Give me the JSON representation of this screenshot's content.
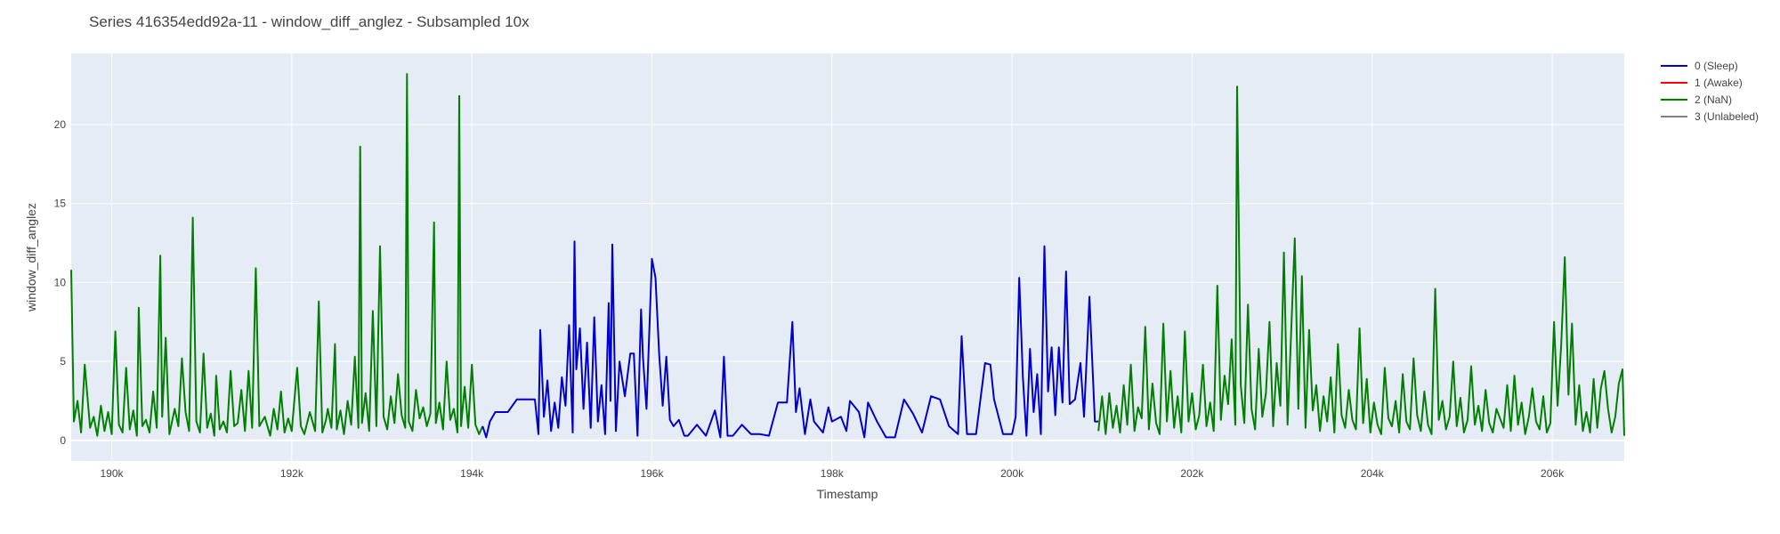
{
  "chart_data": {
    "type": "line",
    "title": "Series 416354edd92a-11 - window_diff_anglez - Subsampled 10x",
    "xlabel": "Timestamp",
    "ylabel": "window_diff_anglez",
    "xlim": [
      189550,
      206800
    ],
    "ylim": [
      -1.3,
      24.5
    ],
    "x_ticks": [
      190000,
      192000,
      194000,
      196000,
      198000,
      200000,
      202000,
      204000,
      206000
    ],
    "x_tick_labels": [
      "190k",
      "192k",
      "194k",
      "196k",
      "198k",
      "200k",
      "202k",
      "204k",
      "206k"
    ],
    "y_ticks": [
      0,
      5,
      10,
      15,
      20
    ],
    "y_tick_labels": [
      "0",
      "5",
      "10",
      "15",
      "20"
    ],
    "grid": true,
    "legend_position": "top-right",
    "colors": {
      "plot_bg": "#e5ecf6",
      "grid": "#ffffff",
      "sleep": "#0000cc",
      "awake": "#ff0000",
      "nan": "#008000",
      "unlabeled": "#808080"
    },
    "legend": [
      {
        "name": "0 (Sleep)",
        "color": "#0000cc"
      },
      {
        "name": "1 (Awake)",
        "color": "#ff0000"
      },
      {
        "name": "2 (NaN)",
        "color": "#008000"
      },
      {
        "name": "3 (Unlabeled)",
        "color": "#808080"
      }
    ],
    "series": [
      {
        "name": "2 (NaN)",
        "color": "#008000",
        "x": [
          189550,
          189580,
          189620,
          189660,
          189700,
          189760,
          189800,
          189840,
          189880,
          189920,
          189960,
          190000,
          190040,
          190080,
          190120,
          190160,
          190200,
          190240,
          190280,
          190300,
          190340,
          190380,
          190420,
          190460,
          190500,
          190540,
          190560,
          190600,
          190640,
          190700,
          190740,
          190780,
          190820,
          190860,
          190900,
          190940,
          190980,
          191020,
          191060,
          191100,
          191140,
          191160,
          191200,
          191240,
          191280,
          191320,
          191360,
          191400,
          191440,
          191480,
          191520,
          191560,
          191600,
          191640,
          191700,
          191760,
          191800,
          191840,
          191880,
          191920,
          191960,
          192000,
          192060,
          192100,
          192140,
          192200,
          192260,
          192300,
          192340,
          192380,
          192400,
          192440,
          192480,
          192500,
          192540,
          192580,
          192620,
          192660,
          192700,
          192740,
          192760,
          192780,
          192820,
          192860,
          192900,
          192940,
          192980,
          193020,
          193060,
          193100,
          193140,
          193180,
          193220,
          193260,
          193280,
          193300,
          193340,
          193380,
          193420,
          193460,
          193500,
          193540,
          193580,
          193600,
          193640,
          193680,
          193720,
          193760,
          193800,
          193840,
          193860,
          193880,
          193920,
          193960,
          194000,
          194040,
          194080,
          194120
        ],
        "y": [
          10.8,
          1.2,
          2.5,
          0.5,
          4.8,
          0.8,
          1.5,
          0.3,
          2.2,
          0.6,
          1.8,
          0.4,
          6.9,
          1.0,
          0.5,
          4.6,
          0.7,
          1.9,
          0.3,
          8.4,
          0.9,
          1.3,
          0.5,
          3.1,
          0.8,
          11.7,
          1.5,
          6.5,
          0.4,
          2.0,
          0.9,
          5.2,
          1.8,
          0.6,
          14.1,
          1.2,
          0.5,
          5.5,
          0.8,
          1.7,
          0.3,
          4.1,
          0.7,
          1.2,
          0.5,
          4.4,
          0.9,
          1.1,
          3.2,
          0.6,
          4.4,
          0.8,
          10.9,
          0.9,
          1.5,
          0.3,
          2.0,
          0.7,
          3.1,
          0.5,
          1.4,
          0.6,
          4.6,
          0.9,
          0.4,
          1.8,
          0.6,
          8.8,
          0.5,
          1.3,
          2.0,
          0.8,
          6.1,
          0.7,
          1.9,
          0.4,
          2.5,
          1.0,
          5.3,
          0.8,
          18.6,
          1.1,
          3.0,
          0.6,
          8.2,
          0.9,
          12.3,
          1.5,
          0.7,
          2.8,
          1.1,
          4.2,
          1.6,
          0.8,
          23.2,
          1.2,
          0.6,
          3.2,
          1.4,
          2.1,
          0.9,
          1.7,
          13.8,
          1.1,
          2.4,
          0.7,
          5.0,
          1.3,
          2.0,
          0.5,
          21.8,
          0.9,
          3.4,
          0.8,
          4.8,
          1.0,
          0.4,
          0.9
        ]
      },
      {
        "name": "0 (Sleep)",
        "color": "#0000cc",
        "x": [
          194120,
          194160,
          194200,
          194260,
          194300,
          194400,
          194500,
          194600,
          194700,
          194740,
          194760,
          194800,
          194840,
          194880,
          194920,
          194960,
          195000,
          195040,
          195080,
          195120,
          195140,
          195160,
          195200,
          195240,
          195280,
          195320,
          195360,
          195400,
          195440,
          195480,
          195520,
          195540,
          195560,
          195600,
          195640,
          195700,
          195760,
          195800,
          195840,
          195880,
          195900,
          195940,
          196000,
          196040,
          196080,
          196120,
          196160,
          196200,
          196240,
          196300,
          196360,
          196400,
          196500,
          196600,
          196700,
          196760,
          196800,
          196840,
          196900,
          197000,
          197100,
          197200,
          197300,
          197400,
          197500,
          197560,
          197600,
          197640,
          197700,
          197760,
          197800,
          197900,
          197960,
          198000,
          198100,
          198160,
          198200,
          198300,
          198360,
          198400,
          198500,
          198600,
          198700,
          198800,
          198900,
          199000,
          199100,
          199200,
          199300,
          199400,
          199440,
          199500,
          199600,
          199700,
          199760,
          199800,
          199900,
          200000,
          200040,
          200080,
          200120,
          200160,
          200200,
          200240,
          200280,
          200320,
          200360,
          200400,
          200440,
          200480,
          200520,
          200560,
          200600,
          200640,
          200700,
          200760,
          200800,
          200860,
          200920,
          200960
        ],
        "y": [
          0.9,
          0.2,
          1.2,
          1.8,
          1.8,
          1.8,
          2.6,
          2.6,
          2.6,
          0.4,
          7.0,
          1.5,
          3.8,
          0.6,
          2.4,
          0.8,
          4.0,
          2.2,
          7.3,
          0.5,
          12.6,
          4.5,
          7.1,
          2.0,
          6.2,
          0.8,
          7.8,
          1.2,
          3.5,
          0.4,
          8.7,
          2.5,
          12.4,
          0.6,
          5.0,
          2.8,
          5.5,
          5.5,
          0.3,
          8.3,
          5.3,
          2.0,
          11.5,
          10.3,
          5.5,
          2.2,
          5.3,
          1.3,
          0.9,
          1.3,
          0.3,
          0.3,
          1.0,
          0.3,
          1.9,
          0.2,
          5.3,
          0.3,
          0.3,
          1.0,
          0.4,
          0.4,
          0.3,
          2.4,
          2.4,
          7.5,
          1.8,
          3.3,
          0.4,
          2.6,
          1.2,
          0.5,
          2.1,
          1.2,
          1.5,
          0.6,
          2.5,
          1.8,
          0.2,
          2.4,
          1.2,
          0.2,
          0.2,
          2.6,
          1.7,
          0.5,
          2.8,
          2.6,
          0.9,
          0.4,
          6.6,
          0.4,
          0.4,
          4.9,
          4.8,
          2.6,
          0.4,
          0.4,
          1.5,
          10.3,
          4.0,
          0.3,
          5.8,
          1.8,
          4.2,
          0.4,
          12.3,
          3.1,
          5.9,
          1.6,
          5.9,
          2.4,
          10.7,
          2.3,
          2.6,
          4.9,
          1.5,
          9.1,
          1.2,
          1.2
        ]
      },
      {
        "name": "2 (NaN)",
        "color": "#008000",
        "x": [
          200960,
          201000,
          201040,
          201080,
          201120,
          201160,
          201200,
          201240,
          201280,
          201320,
          201360,
          201400,
          201440,
          201480,
          201520,
          201560,
          201600,
          201640,
          201680,
          201720,
          201760,
          201800,
          201840,
          201880,
          201920,
          201960,
          202000,
          202040,
          202080,
          202120,
          202160,
          202200,
          202240,
          202280,
          202320,
          202360,
          202400,
          202440,
          202480,
          202500,
          202540,
          202580,
          202620,
          202660,
          202700,
          202740,
          202780,
          202820,
          202860,
          202900,
          202940,
          202980,
          203020,
          203060,
          203100,
          203140,
          203180,
          203220,
          203260,
          203300,
          203340,
          203380,
          203420,
          203460,
          203500,
          203540,
          203580,
          203620,
          203660,
          203700,
          203740,
          203780,
          203820,
          203860,
          203900,
          203940,
          203980,
          204020,
          204060,
          204100,
          204140,
          204180,
          204220,
          204260,
          204300,
          204340,
          204380,
          204420,
          204460,
          204500,
          204540,
          204580,
          204620,
          204660,
          204700,
          204740,
          204780,
          204820,
          204860,
          204900,
          204940,
          204980,
          205020,
          205060,
          205100,
          205140,
          205180,
          205220,
          205260,
          205300,
          205340,
          205380,
          205420,
          205460,
          205500,
          205540,
          205580,
          205620,
          205660,
          205700,
          205740,
          205780,
          205820,
          205860,
          205900,
          205940,
          205980,
          206020,
          206060,
          206100,
          206140,
          206180,
          206220,
          206260,
          206300,
          206340,
          206380,
          206420,
          206460,
          206500,
          206540,
          206580,
          206620,
          206660,
          206700,
          206740,
          206780,
          206800
        ],
        "y": [
          0.6,
          2.8,
          0.4,
          3.0,
          0.8,
          2.2,
          0.5,
          3.5,
          1.0,
          4.8,
          0.6,
          2.1,
          1.4,
          7.2,
          0.7,
          3.6,
          1.1,
          0.4,
          7.4,
          1.2,
          4.4,
          0.8,
          2.8,
          0.5,
          6.9,
          1.2,
          3.0,
          0.7,
          1.6,
          4.8,
          0.9,
          2.4,
          0.6,
          9.8,
          1.3,
          4.1,
          2.3,
          6.4,
          1.0,
          22.4,
          3.5,
          1.1,
          8.6,
          2.0,
          0.7,
          5.8,
          1.5,
          3.0,
          7.5,
          0.9,
          4.9,
          2.2,
          11.9,
          1.0,
          6.8,
          12.8,
          2.0,
          10.4,
          0.8,
          7.0,
          1.9,
          3.5,
          0.6,
          2.8,
          1.2,
          4.0,
          0.5,
          6.1,
          1.6,
          0.8,
          3.2,
          1.3,
          0.7,
          7.1,
          1.1,
          3.9,
          0.5,
          2.4,
          1.0,
          0.4,
          4.6,
          1.4,
          0.9,
          2.5,
          0.5,
          4.2,
          1.2,
          0.7,
          5.2,
          1.6,
          0.6,
          3.1,
          1.0,
          0.4,
          9.6,
          1.3,
          2.5,
          0.7,
          1.5,
          5.0,
          0.9,
          2.7,
          0.5,
          1.3,
          4.7,
          1.0,
          2.2,
          0.6,
          3.2,
          1.1,
          0.5,
          2.0,
          1.4,
          0.8,
          3.5,
          0.6,
          4.1,
          1.0,
          2.4,
          0.4,
          1.5,
          3.3,
          1.2,
          0.7,
          2.8,
          0.5,
          1.1,
          7.5,
          2.2,
          6.1,
          11.6,
          2.9,
          7.4,
          1.0,
          3.5,
          0.6,
          1.8,
          0.5,
          3.9,
          0.8,
          3.3,
          4.4,
          2.0,
          0.5,
          1.5,
          3.6,
          4.5,
          0.3
        ]
      }
    ]
  }
}
